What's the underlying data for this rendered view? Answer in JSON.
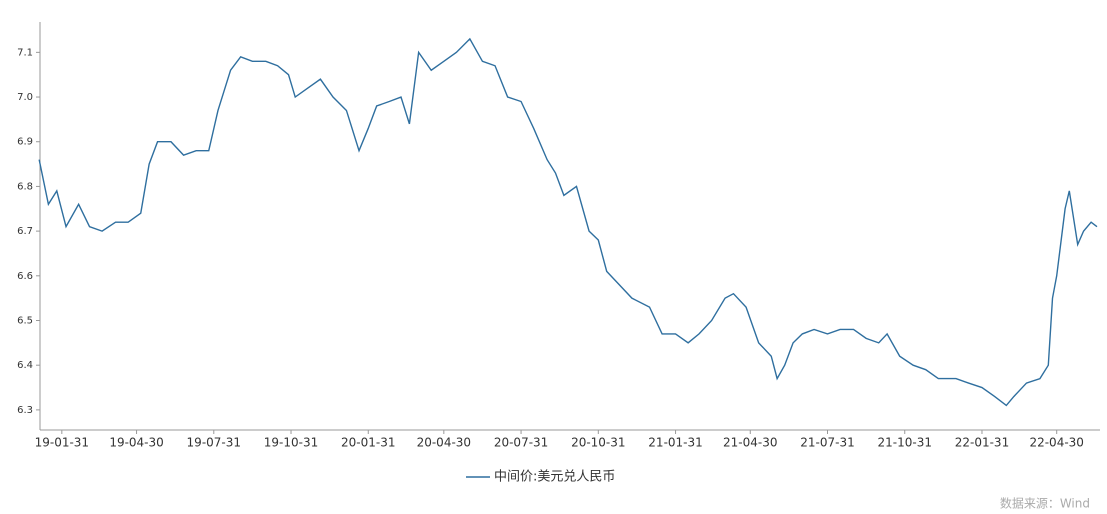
{
  "chart_data": {
    "type": "line",
    "series": [
      {
        "name": "中间价:美元兑人民币",
        "color": "#2f6f9f",
        "x": [
          "19-01-04",
          "19-01-15",
          "19-01-25",
          "19-02-05",
          "19-02-20",
          "19-03-05",
          "19-03-20",
          "19-04-05",
          "19-04-20",
          "19-05-05",
          "19-05-15",
          "19-05-25",
          "19-06-10",
          "19-06-25",
          "19-07-10",
          "19-07-25",
          "19-08-05",
          "19-08-20",
          "19-09-01",
          "19-09-15",
          "19-10-01",
          "19-10-15",
          "19-10-28",
          "19-11-05",
          "19-11-20",
          "19-12-05",
          "19-12-20",
          "20-01-05",
          "20-01-20",
          "20-01-31",
          "20-02-10",
          "20-02-25",
          "20-03-10",
          "20-03-20",
          "20-03-31",
          "20-04-15",
          "20-04-30",
          "20-05-15",
          "20-05-31",
          "20-06-15",
          "20-06-30",
          "20-07-15",
          "20-07-31",
          "20-08-15",
          "20-08-31",
          "20-09-10",
          "20-09-20",
          "20-10-05",
          "20-10-20",
          "20-10-31",
          "20-11-10",
          "20-11-25",
          "20-12-10",
          "20-12-31",
          "21-01-15",
          "21-01-31",
          "21-02-15",
          "21-02-28",
          "21-03-15",
          "21-03-31",
          "21-04-10",
          "21-04-25",
          "21-05-10",
          "21-05-25",
          "21-06-01",
          "21-06-10",
          "21-06-20",
          "21-07-01",
          "21-07-15",
          "21-07-31",
          "21-08-15",
          "21-08-31",
          "21-09-15",
          "21-09-30",
          "21-10-10",
          "21-10-25",
          "21-11-10",
          "21-11-25",
          "21-12-10",
          "21-12-31",
          "22-01-15",
          "22-01-31",
          "22-02-15",
          "22-03-01",
          "22-03-10",
          "22-03-25",
          "22-04-10",
          "22-04-20",
          "22-04-25",
          "22-04-30",
          "22-05-10",
          "22-05-15",
          "22-05-25",
          "22-06-01",
          "22-06-10",
          "22-06-17"
        ],
        "values": [
          6.86,
          6.76,
          6.79,
          6.71,
          6.76,
          6.71,
          6.7,
          6.72,
          6.72,
          6.74,
          6.85,
          6.9,
          6.9,
          6.87,
          6.88,
          6.88,
          6.97,
          7.06,
          7.09,
          7.08,
          7.08,
          7.07,
          7.05,
          7.0,
          7.02,
          7.04,
          7.0,
          6.97,
          6.88,
          6.93,
          6.98,
          6.99,
          7.0,
          6.94,
          7.1,
          7.06,
          7.08,
          7.1,
          7.13,
          7.08,
          7.07,
          7.0,
          6.99,
          6.93,
          6.86,
          6.83,
          6.78,
          6.8,
          6.7,
          6.68,
          6.61,
          6.58,
          6.55,
          6.53,
          6.47,
          6.47,
          6.45,
          6.47,
          6.5,
          6.55,
          6.56,
          6.53,
          6.45,
          6.42,
          6.37,
          6.4,
          6.45,
          6.47,
          6.48,
          6.47,
          6.48,
          6.48,
          6.46,
          6.45,
          6.47,
          6.42,
          6.4,
          6.39,
          6.37,
          6.37,
          6.36,
          6.35,
          6.33,
          6.31,
          6.33,
          6.36,
          6.37,
          6.4,
          6.55,
          6.6,
          6.75,
          6.79,
          6.67,
          6.7,
          6.72,
          6.71
        ]
      }
    ],
    "xlim": [
      "19-01-05",
      "22-06-17"
    ],
    "xticks": [
      "19-01-31",
      "19-04-30",
      "19-07-31",
      "19-10-31",
      "20-01-31",
      "20-04-30",
      "20-07-31",
      "20-10-31",
      "21-01-31",
      "21-04-30",
      "21-07-31",
      "21-10-31",
      "22-01-31",
      "22-04-30"
    ],
    "ylim": [
      6.255,
      7.15
    ],
    "yticks": [
      6.3,
      6.4,
      6.5,
      6.6,
      6.7,
      6.8,
      6.9,
      {
        "value": 7,
        "label": "7.0"
      },
      7.1
    ],
    "source": "数据来源：Wind"
  }
}
